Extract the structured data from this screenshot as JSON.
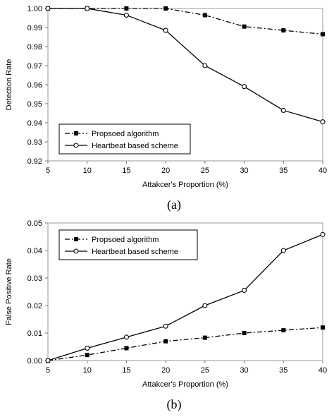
{
  "chart_data": [
    {
      "type": "line",
      "panel_label": "(a)",
      "xlabel": "Attakcer's Proportion (%)",
      "ylabel": "Detection Rate",
      "x": [
        5,
        10,
        15,
        20,
        25,
        30,
        35,
        40
      ],
      "xlim": [
        5,
        40
      ],
      "ylim": [
        0.92,
        1.0
      ],
      "xticks": [
        "5",
        "10",
        "15",
        "20",
        "25",
        "30",
        "35",
        "40"
      ],
      "yticks": [
        "0.92",
        "0.93",
        "0.94",
        "0.95",
        "0.96",
        "0.97",
        "0.98",
        "0.99",
        "1.00"
      ],
      "legend_position": "bottom-left",
      "grid": false,
      "series": [
        {
          "name": "Propsoed algorithm",
          "style": "dash-dot",
          "marker": "filled-square",
          "values": [
            1.0,
            1.0,
            1.0,
            1.0,
            0.9965,
            0.9905,
            0.9885,
            0.9865
          ]
        },
        {
          "name": "Heartbeat based scheme",
          "style": "solid",
          "marker": "open-circle",
          "values": [
            1.0,
            1.0,
            0.9965,
            0.9885,
            0.97,
            0.959,
            0.9465,
            0.9405
          ]
        }
      ]
    },
    {
      "type": "line",
      "panel_label": "(b)",
      "xlabel": "Attakcer's Proportion (%)",
      "ylabel": "False Positive Rate",
      "x": [
        5,
        10,
        15,
        20,
        25,
        30,
        35,
        40
      ],
      "xlim": [
        5,
        40
      ],
      "ylim": [
        0.0,
        0.05
      ],
      "xticks": [
        "5",
        "10",
        "15",
        "20",
        "25",
        "30",
        "35",
        "40"
      ],
      "yticks": [
        "0.00",
        "0.01",
        "0.02",
        "0.03",
        "0.04",
        "0.05"
      ],
      "legend_position": "top-left",
      "grid": false,
      "series": [
        {
          "name": "Propsoed algorithm",
          "style": "dash-dot",
          "marker": "filled-square",
          "values": [
            0.0,
            0.002,
            0.0045,
            0.007,
            0.0083,
            0.01,
            0.011,
            0.012
          ]
        },
        {
          "name": "Heartbeat based scheme",
          "style": "solid",
          "marker": "open-circle",
          "values": [
            0.0,
            0.0045,
            0.0085,
            0.0125,
            0.02,
            0.0255,
            0.04,
            0.0458
          ]
        }
      ]
    }
  ]
}
